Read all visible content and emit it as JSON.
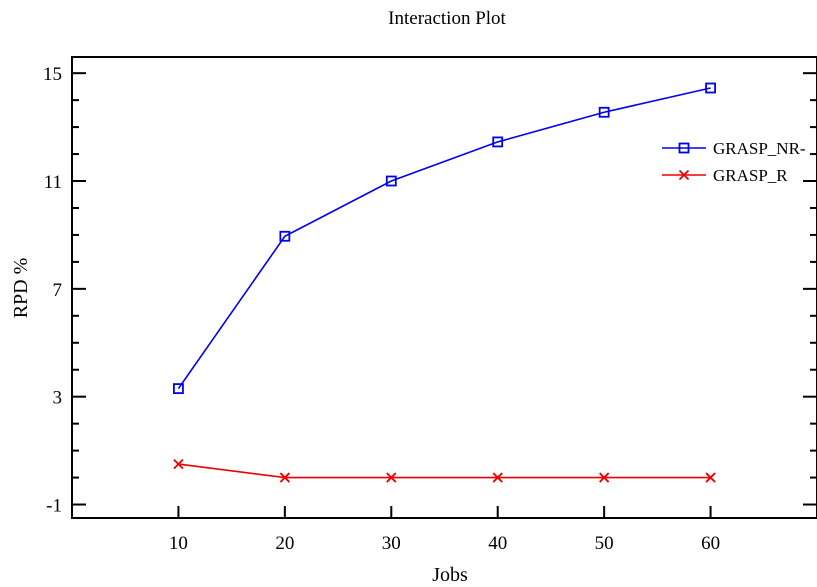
{
  "chart_data": {
    "type": "line",
    "title": "Interaction Plot",
    "xlabel": "Jobs",
    "ylabel": "RPD %",
    "x": [
      10,
      20,
      30,
      40,
      50,
      60
    ],
    "x_ticks": [
      10,
      20,
      30,
      40,
      50,
      60
    ],
    "y_ticks": [
      -1,
      3,
      7,
      11,
      15
    ],
    "xlim": [
      0,
      70
    ],
    "ylim": [
      -1.5,
      15.6
    ],
    "grid": false,
    "legend_position": "right",
    "series": [
      {
        "name": "GRASP_NR-",
        "values": [
          3.3,
          8.95,
          11.0,
          12.45,
          13.55,
          14.45
        ],
        "color": "#0000ee",
        "marker": "square"
      },
      {
        "name": "GRASP_R",
        "values": [
          0.5,
          0.0,
          0.0,
          0.0,
          0.0,
          0.0
        ],
        "color": "#ee0000",
        "marker": "x"
      }
    ]
  }
}
